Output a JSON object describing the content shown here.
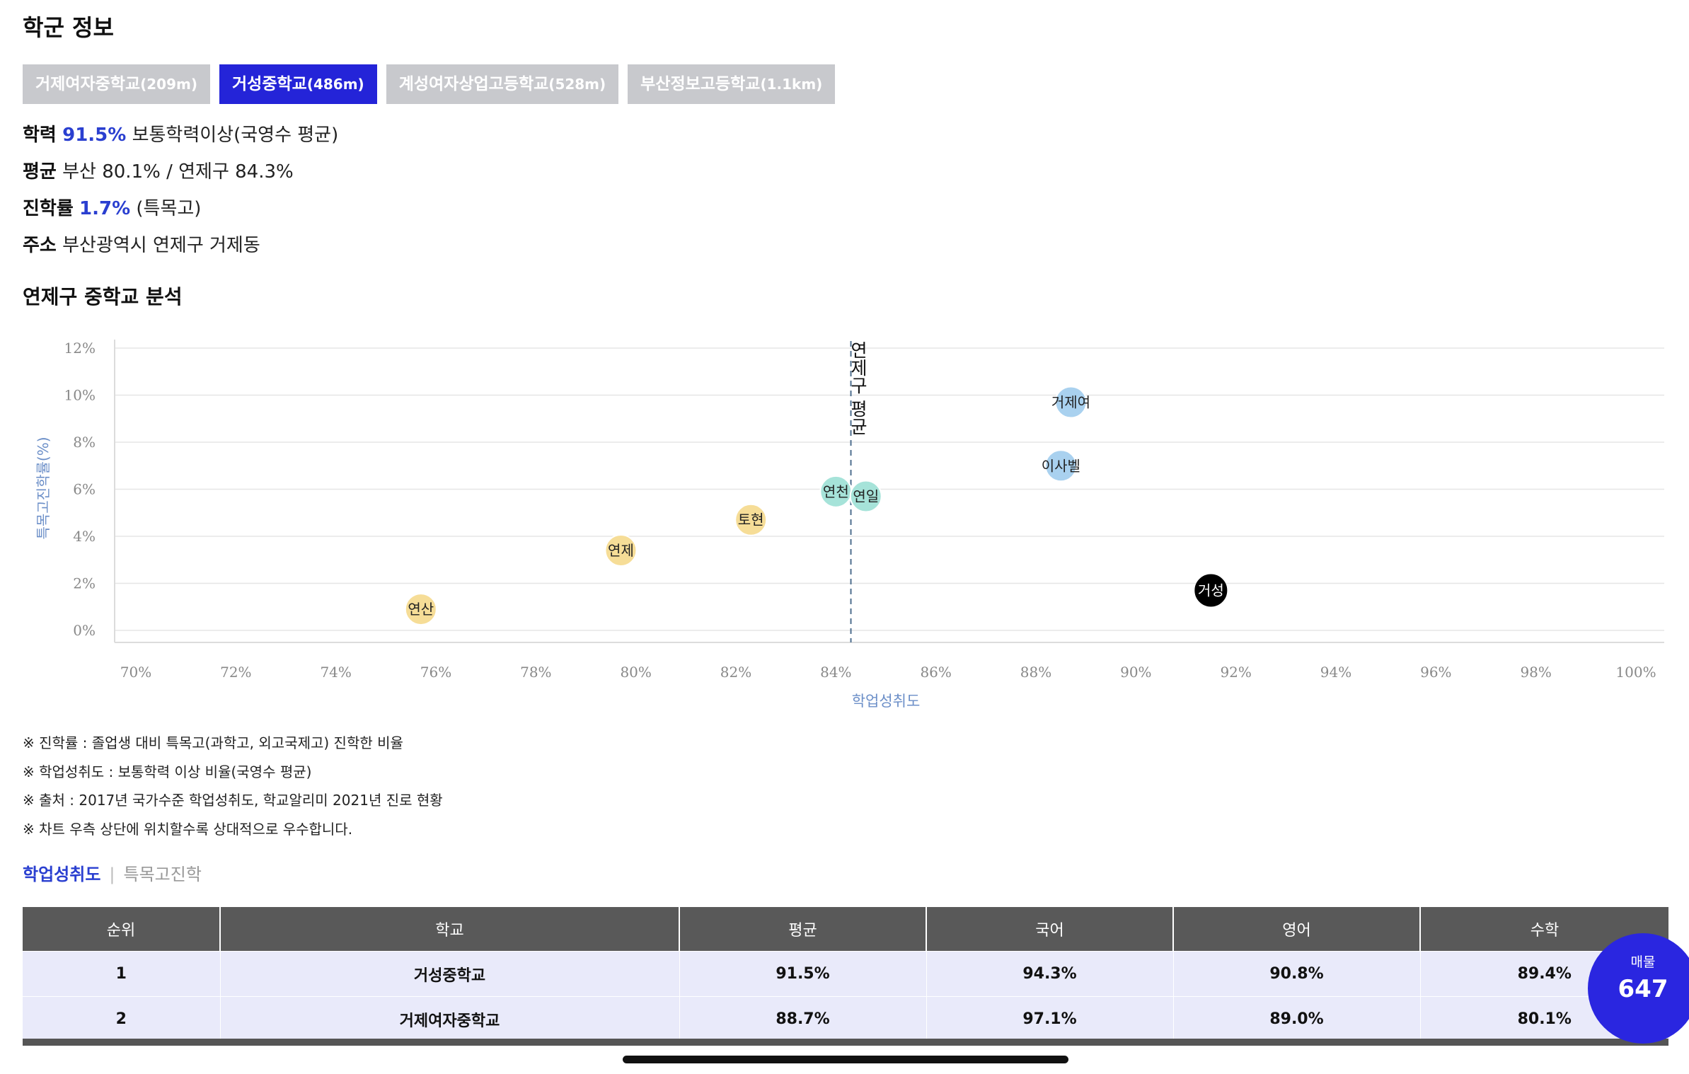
{
  "header": {
    "title": "학군 정보"
  },
  "school_tabs": [
    {
      "name": "거제여자중학교",
      "dist": "(209m)",
      "active": false
    },
    {
      "name": "거성중학교",
      "dist": "(486m)",
      "active": true
    },
    {
      "name": "계성여자상업고등학교",
      "dist": "(528m)",
      "active": false
    },
    {
      "name": "부산정보고등학교",
      "dist": "(1.1km)",
      "active": false
    }
  ],
  "info": {
    "academic": {
      "label": "학력",
      "value": "91.5%",
      "desc": "보통학력이상(국영수 평균)"
    },
    "average": {
      "label": "평균",
      "text": "부산 80.1% / 연제구 84.3%"
    },
    "advance": {
      "label": "진학률",
      "value": "1.7%",
      "desc": "(특목고)"
    },
    "address": {
      "label": "주소",
      "text": "부산광역시 연제구 거제동"
    }
  },
  "analysis_title": "연제구 중학교 분석",
  "chart_data": {
    "type": "scatter",
    "xlabel": "학업성취도",
    "ylabel": "특목고진학률(%)",
    "xlim": [
      70,
      100
    ],
    "ylim": [
      0,
      12
    ],
    "xticks": [
      "70%",
      "72%",
      "74%",
      "76%",
      "78%",
      "80%",
      "82%",
      "84%",
      "86%",
      "88%",
      "90%",
      "92%",
      "94%",
      "96%",
      "98%",
      "100%"
    ],
    "yticks": [
      "0%",
      "2%",
      "4%",
      "6%",
      "8%",
      "10%",
      "12%"
    ],
    "grid": true,
    "reference_line": {
      "label": "연제구 평균",
      "x": 84.3
    },
    "points": [
      {
        "label": "거제여",
        "x": 88.7,
        "y": 9.7,
        "color": "#a9d1ef"
      },
      {
        "label": "이사벨",
        "x": 88.5,
        "y": 7.0,
        "color": "#a9d1ef"
      },
      {
        "label": "연천",
        "x": 84.0,
        "y": 5.9,
        "color": "#a6e3d9"
      },
      {
        "label": "연일",
        "x": 84.6,
        "y": 5.7,
        "color": "#a6e3d9"
      },
      {
        "label": "토현",
        "x": 82.3,
        "y": 4.7,
        "color": "#f6dd97"
      },
      {
        "label": "연제",
        "x": 79.7,
        "y": 3.4,
        "color": "#f6dd97"
      },
      {
        "label": "연산",
        "x": 75.7,
        "y": 0.9,
        "color": "#f6dd97"
      },
      {
        "label": "거성",
        "x": 91.5,
        "y": 1.7,
        "color": "#000000"
      }
    ]
  },
  "notes": [
    "※ 진학률 : 졸업생 대비 특목고(과학고, 외고국제고) 진학한 비율",
    "※ 학업성취도 : 보통학력 이상 비율(국영수 평균)",
    "※ 출처 : 2017년 국가수준 학업성취도, 학교알리미 2021년 진로 현황",
    "※ 차트 우측 상단에 위치할수록 상대적으로 우수합니다."
  ],
  "subtabs": {
    "active": "학업성취도",
    "inactive": "특목고진학"
  },
  "table": {
    "headers": [
      "순위",
      "학교",
      "평균",
      "국어",
      "영어",
      "수학"
    ],
    "rows": [
      [
        "1",
        "거성중학교",
        "91.5%",
        "94.3%",
        "90.8%",
        "89.4%"
      ],
      [
        "2",
        "거제여자중학교",
        "88.7%",
        "97.1%",
        "89.0%",
        "80.1%"
      ]
    ]
  },
  "badge": {
    "label": "매물",
    "count": "647"
  }
}
